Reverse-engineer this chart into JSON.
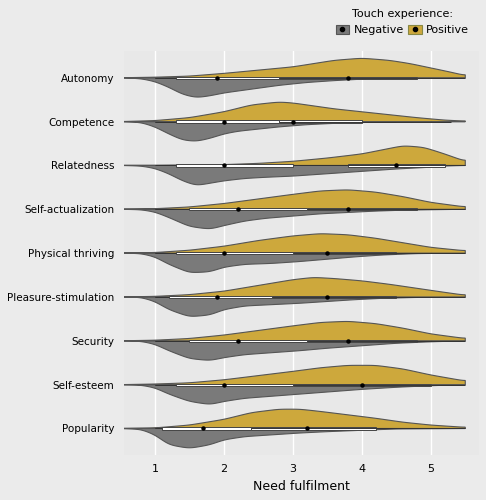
{
  "categories": [
    "Autonomy",
    "Competence",
    "Relatedness",
    "Self-actualization",
    "Physical thriving",
    "Pleasure-stimulation",
    "Security",
    "Self-esteem",
    "Popularity"
  ],
  "neg_color": "#7A7A7A",
  "pos_color": "#CDA83C",
  "bg_color": "#EBEBEB",
  "panel_bg": "#E8E8E8",
  "x_label": "Need fulfilment",
  "legend_title": "Touch experience:",
  "legend_neg": "Negative",
  "legend_pos": "Positive",
  "xlim": [
    0.55,
    5.7
  ],
  "xticks": [
    1,
    2,
    3,
    4,
    5
  ],
  "neg_data": {
    "Autonomy": {
      "mean": 1.9,
      "q1": 1.3,
      "q3": 2.8,
      "min": 1.0,
      "max": 4.8,
      "kde_x": [
        0.5,
        0.8,
        1.0,
        1.2,
        1.4,
        1.6,
        1.8,
        2.0,
        2.2,
        2.5,
        2.8,
        3.2,
        3.6,
        4.0,
        4.5,
        5.0,
        5.5
      ],
      "kde_y": [
        0.0,
        0.02,
        0.08,
        0.2,
        0.35,
        0.42,
        0.38,
        0.32,
        0.28,
        0.22,
        0.16,
        0.1,
        0.06,
        0.03,
        0.01,
        0.0,
        0.0
      ]
    },
    "Competence": {
      "mean": 2.0,
      "q1": 1.3,
      "q3": 2.8,
      "min": 1.0,
      "max": 4.5,
      "kde_x": [
        0.5,
        0.8,
        1.0,
        1.2,
        1.4,
        1.6,
        1.8,
        2.0,
        2.2,
        2.5,
        2.8,
        3.2,
        3.6,
        4.0,
        4.5,
        5.0,
        5.5
      ],
      "kde_y": [
        0.0,
        0.02,
        0.12,
        0.28,
        0.42,
        0.45,
        0.38,
        0.28,
        0.22,
        0.17,
        0.12,
        0.07,
        0.04,
        0.02,
        0.01,
        0.0,
        0.0
      ]
    },
    "Relatedness": {
      "mean": 2.0,
      "q1": 1.3,
      "q3": 3.0,
      "min": 1.0,
      "max": 5.2,
      "kde_x": [
        0.5,
        0.8,
        1.0,
        1.2,
        1.4,
        1.6,
        1.8,
        2.0,
        2.3,
        2.6,
        3.0,
        3.5,
        4.0,
        4.5,
        5.0,
        5.2,
        5.5
      ],
      "kde_y": [
        0.0,
        0.01,
        0.05,
        0.14,
        0.26,
        0.34,
        0.3,
        0.26,
        0.22,
        0.2,
        0.18,
        0.14,
        0.1,
        0.06,
        0.03,
        0.01,
        0.0
      ]
    },
    "Self-actualization": {
      "mean": 2.2,
      "q1": 1.5,
      "q3": 3.2,
      "min": 1.0,
      "max": 5.2,
      "kde_x": [
        0.5,
        0.8,
        1.0,
        1.2,
        1.5,
        1.8,
        2.0,
        2.3,
        2.6,
        3.0,
        3.4,
        3.8,
        4.2,
        4.6,
        5.0,
        5.5
      ],
      "kde_y": [
        0.0,
        0.01,
        0.06,
        0.18,
        0.38,
        0.44,
        0.36,
        0.26,
        0.2,
        0.15,
        0.1,
        0.07,
        0.04,
        0.02,
        0.01,
        0.0
      ]
    },
    "Physical thriving": {
      "mean": 2.0,
      "q1": 1.3,
      "q3": 3.0,
      "min": 1.0,
      "max": 4.8,
      "kde_x": [
        0.5,
        0.8,
        1.0,
        1.2,
        1.5,
        1.8,
        2.0,
        2.3,
        2.7,
        3.1,
        3.5,
        3.9,
        4.3,
        4.8,
        5.5
      ],
      "kde_y": [
        0.0,
        0.01,
        0.08,
        0.24,
        0.42,
        0.4,
        0.3,
        0.24,
        0.22,
        0.18,
        0.13,
        0.08,
        0.04,
        0.01,
        0.0
      ]
    },
    "Pleasure-stimulation": {
      "mean": 1.9,
      "q1": 1.2,
      "q3": 2.7,
      "min": 1.0,
      "max": 4.8,
      "kde_x": [
        0.5,
        0.8,
        1.0,
        1.2,
        1.5,
        1.8,
        2.0,
        2.3,
        2.7,
        3.1,
        3.5,
        3.9,
        4.3,
        4.8,
        5.5
      ],
      "kde_y": [
        0.0,
        0.01,
        0.1,
        0.28,
        0.44,
        0.4,
        0.28,
        0.2,
        0.17,
        0.14,
        0.1,
        0.06,
        0.03,
        0.01,
        0.0
      ]
    },
    "Security": {
      "mean": 2.2,
      "q1": 1.5,
      "q3": 3.2,
      "min": 1.0,
      "max": 5.0,
      "kde_x": [
        0.5,
        0.8,
        1.0,
        1.2,
        1.5,
        1.8,
        2.0,
        2.3,
        2.7,
        3.1,
        3.5,
        4.0,
        4.5,
        5.0,
        5.5
      ],
      "kde_y": [
        0.0,
        0.01,
        0.07,
        0.2,
        0.36,
        0.4,
        0.34,
        0.28,
        0.24,
        0.2,
        0.15,
        0.1,
        0.05,
        0.02,
        0.0
      ]
    },
    "Self-esteem": {
      "mean": 2.0,
      "q1": 1.3,
      "q3": 3.0,
      "min": 1.0,
      "max": 5.0,
      "kde_x": [
        0.5,
        0.8,
        1.0,
        1.2,
        1.5,
        1.8,
        2.0,
        2.3,
        2.7,
        3.1,
        3.5,
        4.0,
        4.5,
        5.0,
        5.5
      ],
      "kde_y": [
        0.0,
        0.01,
        0.06,
        0.18,
        0.32,
        0.38,
        0.32,
        0.26,
        0.22,
        0.18,
        0.14,
        0.09,
        0.05,
        0.02,
        0.0
      ]
    },
    "Popularity": {
      "mean": 1.7,
      "q1": 1.1,
      "q3": 2.4,
      "min": 1.0,
      "max": 4.5,
      "kde_x": [
        0.5,
        0.8,
        1.0,
        1.2,
        1.5,
        1.8,
        2.0,
        2.3,
        2.7,
        3.1,
        3.5,
        4.0,
        4.5,
        5.5
      ],
      "kde_y": [
        0.0,
        0.02,
        0.14,
        0.36,
        0.44,
        0.36,
        0.25,
        0.18,
        0.14,
        0.1,
        0.07,
        0.04,
        0.01,
        0.0
      ]
    }
  },
  "pos_data": {
    "Autonomy": {
      "mean": 3.8,
      "q1": 2.8,
      "q3": 4.8,
      "min": 1.0,
      "max": 5.5,
      "kde_x": [
        0.5,
        1.0,
        1.5,
        2.0,
        2.5,
        3.0,
        3.3,
        3.6,
        4.0,
        4.4,
        4.7,
        5.0,
        5.3,
        5.5
      ],
      "kde_y": [
        0.0,
        0.01,
        0.03,
        0.08,
        0.14,
        0.2,
        0.26,
        0.32,
        0.36,
        0.32,
        0.26,
        0.18,
        0.1,
        0.04
      ]
    },
    "Competence": {
      "mean": 3.0,
      "q1": 2.2,
      "q3": 4.0,
      "min": 1.0,
      "max": 5.3,
      "kde_x": [
        0.5,
        1.0,
        1.5,
        2.0,
        2.4,
        2.8,
        3.0,
        3.3,
        3.6,
        4.0,
        4.4,
        4.8,
        5.2,
        5.5
      ],
      "kde_y": [
        0.0,
        0.02,
        0.08,
        0.2,
        0.34,
        0.4,
        0.38,
        0.32,
        0.26,
        0.2,
        0.14,
        0.08,
        0.03,
        0.01
      ]
    },
    "Relatedness": {
      "mean": 4.5,
      "q1": 3.8,
      "q3": 5.2,
      "min": 1.5,
      "max": 5.5,
      "kde_x": [
        0.5,
        1.0,
        1.5,
        2.0,
        2.5,
        3.0,
        3.5,
        4.0,
        4.3,
        4.6,
        4.9,
        5.2,
        5.5
      ],
      "kde_y": [
        0.0,
        0.0,
        0.01,
        0.02,
        0.05,
        0.1,
        0.18,
        0.28,
        0.38,
        0.48,
        0.44,
        0.28,
        0.1
      ]
    },
    "Self-actualization": {
      "mean": 3.8,
      "q1": 2.8,
      "q3": 4.8,
      "min": 1.0,
      "max": 5.5,
      "kde_x": [
        0.5,
        1.0,
        1.5,
        2.0,
        2.5,
        3.0,
        3.4,
        3.8,
        4.2,
        4.6,
        5.0,
        5.5
      ],
      "kde_y": [
        0.0,
        0.01,
        0.04,
        0.1,
        0.18,
        0.26,
        0.32,
        0.34,
        0.3,
        0.22,
        0.12,
        0.04
      ]
    },
    "Physical thriving": {
      "mean": 3.5,
      "q1": 2.5,
      "q3": 4.5,
      "min": 1.0,
      "max": 5.5,
      "kde_x": [
        0.5,
        1.0,
        1.5,
        2.0,
        2.5,
        3.0,
        3.4,
        3.8,
        4.2,
        4.6,
        5.0,
        5.5
      ],
      "kde_y": [
        0.0,
        0.01,
        0.05,
        0.12,
        0.22,
        0.3,
        0.34,
        0.32,
        0.26,
        0.18,
        0.1,
        0.04
      ]
    },
    "Pleasure-stimulation": {
      "mean": 3.5,
      "q1": 2.5,
      "q3": 4.5,
      "min": 1.0,
      "max": 5.5,
      "kde_x": [
        0.5,
        1.0,
        1.5,
        2.0,
        2.5,
        3.0,
        3.3,
        3.6,
        4.0,
        4.4,
        4.8,
        5.2,
        5.5
      ],
      "kde_y": [
        0.0,
        0.01,
        0.04,
        0.1,
        0.2,
        0.3,
        0.34,
        0.32,
        0.28,
        0.22,
        0.15,
        0.08,
        0.03
      ]
    },
    "Security": {
      "mean": 3.8,
      "q1": 2.8,
      "q3": 4.8,
      "min": 1.0,
      "max": 5.5,
      "kde_x": [
        0.5,
        1.0,
        1.5,
        2.0,
        2.5,
        3.0,
        3.4,
        3.8,
        4.2,
        4.6,
        5.0,
        5.5
      ],
      "kde_y": [
        0.0,
        0.01,
        0.04,
        0.1,
        0.18,
        0.26,
        0.32,
        0.34,
        0.3,
        0.22,
        0.12,
        0.04
      ]
    },
    "Self-esteem": {
      "mean": 4.0,
      "q1": 3.0,
      "q3": 5.0,
      "min": 1.0,
      "max": 5.5,
      "kde_x": [
        0.5,
        1.0,
        1.5,
        2.0,
        2.5,
        3.0,
        3.4,
        3.8,
        4.2,
        4.6,
        5.0,
        5.5
      ],
      "kde_y": [
        0.0,
        0.01,
        0.03,
        0.08,
        0.15,
        0.22,
        0.28,
        0.32,
        0.32,
        0.26,
        0.16,
        0.06
      ]
    },
    "Popularity": {
      "mean": 3.2,
      "q1": 2.2,
      "q3": 4.2,
      "min": 1.0,
      "max": 5.5,
      "kde_x": [
        0.5,
        1.0,
        1.5,
        2.0,
        2.4,
        2.8,
        3.1,
        3.4,
        3.8,
        4.2,
        4.6,
        5.0,
        5.5
      ],
      "kde_y": [
        0.0,
        0.01,
        0.06,
        0.16,
        0.28,
        0.34,
        0.34,
        0.3,
        0.24,
        0.18,
        0.11,
        0.06,
        0.02
      ]
    }
  }
}
